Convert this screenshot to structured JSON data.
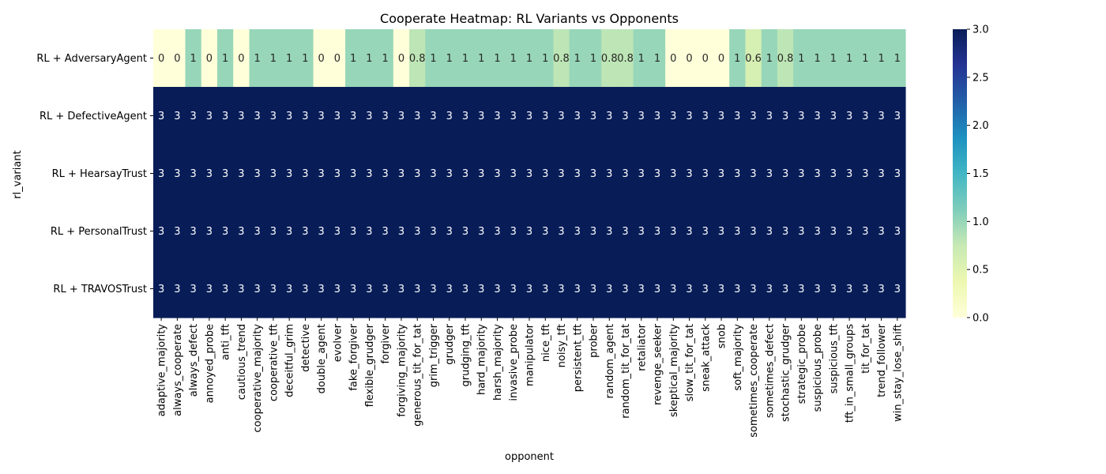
{
  "chart_data": {
    "type": "heatmap",
    "title": "Cooperate Heatmap: RL Variants vs Opponents",
    "xlabel": "opponent",
    "ylabel": "rl_variant",
    "rows": [
      "RL + AdversaryAgent",
      "RL + DefectiveAgent",
      "RL + HearsayTrust",
      "RL + PersonalTrust",
      "RL + TRAVOSTrust"
    ],
    "columns": [
      "adaptive_majority",
      "always_cooperate",
      "always_defect",
      "annoyed_probe",
      "anti_tft",
      "cautious_trend",
      "cooperative_majority",
      "cooperative_tft",
      "deceitful_grim",
      "detective",
      "double_agent",
      "evolver",
      "fake_forgiver",
      "flexible_grudger",
      "forgiver",
      "forgiving_majority",
      "generous_tit_for_tat",
      "grim_trigger",
      "grudger",
      "grudging_tft",
      "hard_majority",
      "harsh_majority",
      "invasive_probe",
      "manipulator",
      "nice_tft",
      "noisy_tft",
      "persistent_tft",
      "prober",
      "random_agent",
      "random_tit_for_tat",
      "retaliator",
      "revenge_seeker",
      "skeptical_majority",
      "slow_tit_for_tat",
      "sneak_attack",
      "snob",
      "soft_majority",
      "sometimes_cooperate",
      "sometimes_defect",
      "stochastic_grudger",
      "strategic_probe",
      "suspicious_probe",
      "suspicious_tft",
      "tft_in_small_groups",
      "tit_for_tat",
      "trend_follower",
      "win_stay_lose_shift"
    ],
    "values": [
      [
        0,
        0,
        1,
        0,
        1,
        0,
        1,
        1,
        1,
        1,
        0,
        0,
        1,
        1,
        1,
        0,
        0.8,
        1,
        1,
        1,
        1,
        1,
        1,
        1,
        1,
        0.8,
        1,
        1,
        0.8,
        0.8,
        1,
        1,
        0,
        0,
        0,
        0,
        1,
        0.6,
        1,
        0.8,
        1,
        1,
        1,
        1,
        1,
        1,
        1
      ],
      [
        3,
        3,
        3,
        3,
        3,
        3,
        3,
        3,
        3,
        3,
        3,
        3,
        3,
        3,
        3,
        3,
        3,
        3,
        3,
        3,
        3,
        3,
        3,
        3,
        3,
        3,
        3,
        3,
        3,
        3,
        3,
        3,
        3,
        3,
        3,
        3,
        3,
        3,
        3,
        3,
        3,
        3,
        3,
        3,
        3,
        3,
        3
      ],
      [
        3,
        3,
        3,
        3,
        3,
        3,
        3,
        3,
        3,
        3,
        3,
        3,
        3,
        3,
        3,
        3,
        3,
        3,
        3,
        3,
        3,
        3,
        3,
        3,
        3,
        3,
        3,
        3,
        3,
        3,
        3,
        3,
        3,
        3,
        3,
        3,
        3,
        3,
        3,
        3,
        3,
        3,
        3,
        3,
        3,
        3,
        3
      ],
      [
        3,
        3,
        3,
        3,
        3,
        3,
        3,
        3,
        3,
        3,
        3,
        3,
        3,
        3,
        3,
        3,
        3,
        3,
        3,
        3,
        3,
        3,
        3,
        3,
        3,
        3,
        3,
        3,
        3,
        3,
        3,
        3,
        3,
        3,
        3,
        3,
        3,
        3,
        3,
        3,
        3,
        3,
        3,
        3,
        3,
        3,
        3
      ],
      [
        3,
        3,
        3,
        3,
        3,
        3,
        3,
        3,
        3,
        3,
        3,
        3,
        3,
        3,
        3,
        3,
        3,
        3,
        3,
        3,
        3,
        3,
        3,
        3,
        3,
        3,
        3,
        3,
        3,
        3,
        3,
        3,
        3,
        3,
        3,
        3,
        3,
        3,
        3,
        3,
        3,
        3,
        3,
        3,
        3,
        3,
        3
      ]
    ],
    "colorbar": {
      "min": 0,
      "max": 3,
      "ticks": [
        "0.0",
        "0.5",
        "1.0",
        "1.5",
        "2.0",
        "2.5",
        "3.0"
      ],
      "colormap": "YlGnBu"
    }
  }
}
